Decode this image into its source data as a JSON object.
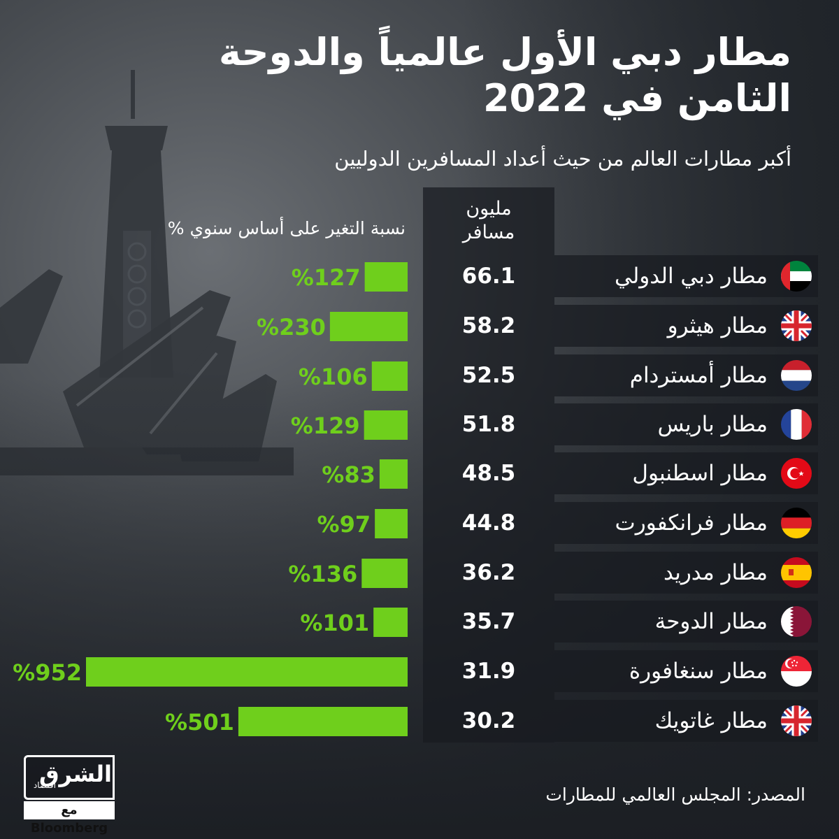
{
  "title_lines": [
    "مطار دبي الأول عالمياً والدوحة",
    "الثامن في 2022"
  ],
  "subtitle": "أكبر مطارات العالم من حيث أعداد المسافرين الدوليين",
  "passengers_header": [
    "مليون",
    "مسافر"
  ],
  "change_header": "نسبة التغير على أساس سنوي %",
  "source": "المصدر: المجلس العالمي للمطارات",
  "logo": {
    "main": "الشرق",
    "sub": "اقتصاد",
    "with": "مع",
    "partner": "Bloomberg"
  },
  "colors": {
    "bar": "#6fcf1c",
    "bar_label": "#6fcf1c",
    "panel": "#181b20"
  },
  "rows": [
    {
      "name": "مطار دبي الدولي",
      "flag": "uae-flag-icon"
    },
    {
      "name": "مطار هيثرو",
      "flag": "uk-flag-icon"
    },
    {
      "name": "مطار أمستردام",
      "flag": "netherlands-flag-icon"
    },
    {
      "name": "مطار باريس",
      "flag": "france-flag-icon"
    },
    {
      "name": "مطار اسطنبول",
      "flag": "turkey-flag-icon"
    },
    {
      "name": "مطار فرانكفورت",
      "flag": "germany-flag-icon"
    },
    {
      "name": "مطار مدريد",
      "flag": "spain-flag-icon"
    },
    {
      "name": "مطار الدوحة",
      "flag": "qatar-flag-icon"
    },
    {
      "name": "مطار سنغافورة",
      "flag": "singapore-flag-icon"
    },
    {
      "name": "مطار غاتويك",
      "flag": "uk-flag-icon"
    }
  ],
  "chart_data": {
    "type": "table",
    "categories": [
      "مطار دبي الدولي",
      "مطار هيثرو",
      "مطار أمستردام",
      "مطار باريس",
      "مطار اسطنبول",
      "مطار فرانكفورت",
      "مطار مدريد",
      "مطار الدوحة",
      "مطار سنغافورة",
      "مطار غاتويك"
    ],
    "passengers_millions": [
      "66.1",
      "58.2",
      "52.5",
      "51.8",
      "48.5",
      "44.8",
      "36.2",
      "35.7",
      "31.9",
      "30.2"
    ],
    "yoy_change_percent": [
      127,
      230,
      106,
      129,
      83,
      97,
      136,
      101,
      952,
      501
    ],
    "yoy_labels": [
      "%127",
      "%230",
      "%106",
      "%129",
      "%83",
      "%97",
      "%136",
      "%101",
      "%952",
      "%501"
    ]
  }
}
